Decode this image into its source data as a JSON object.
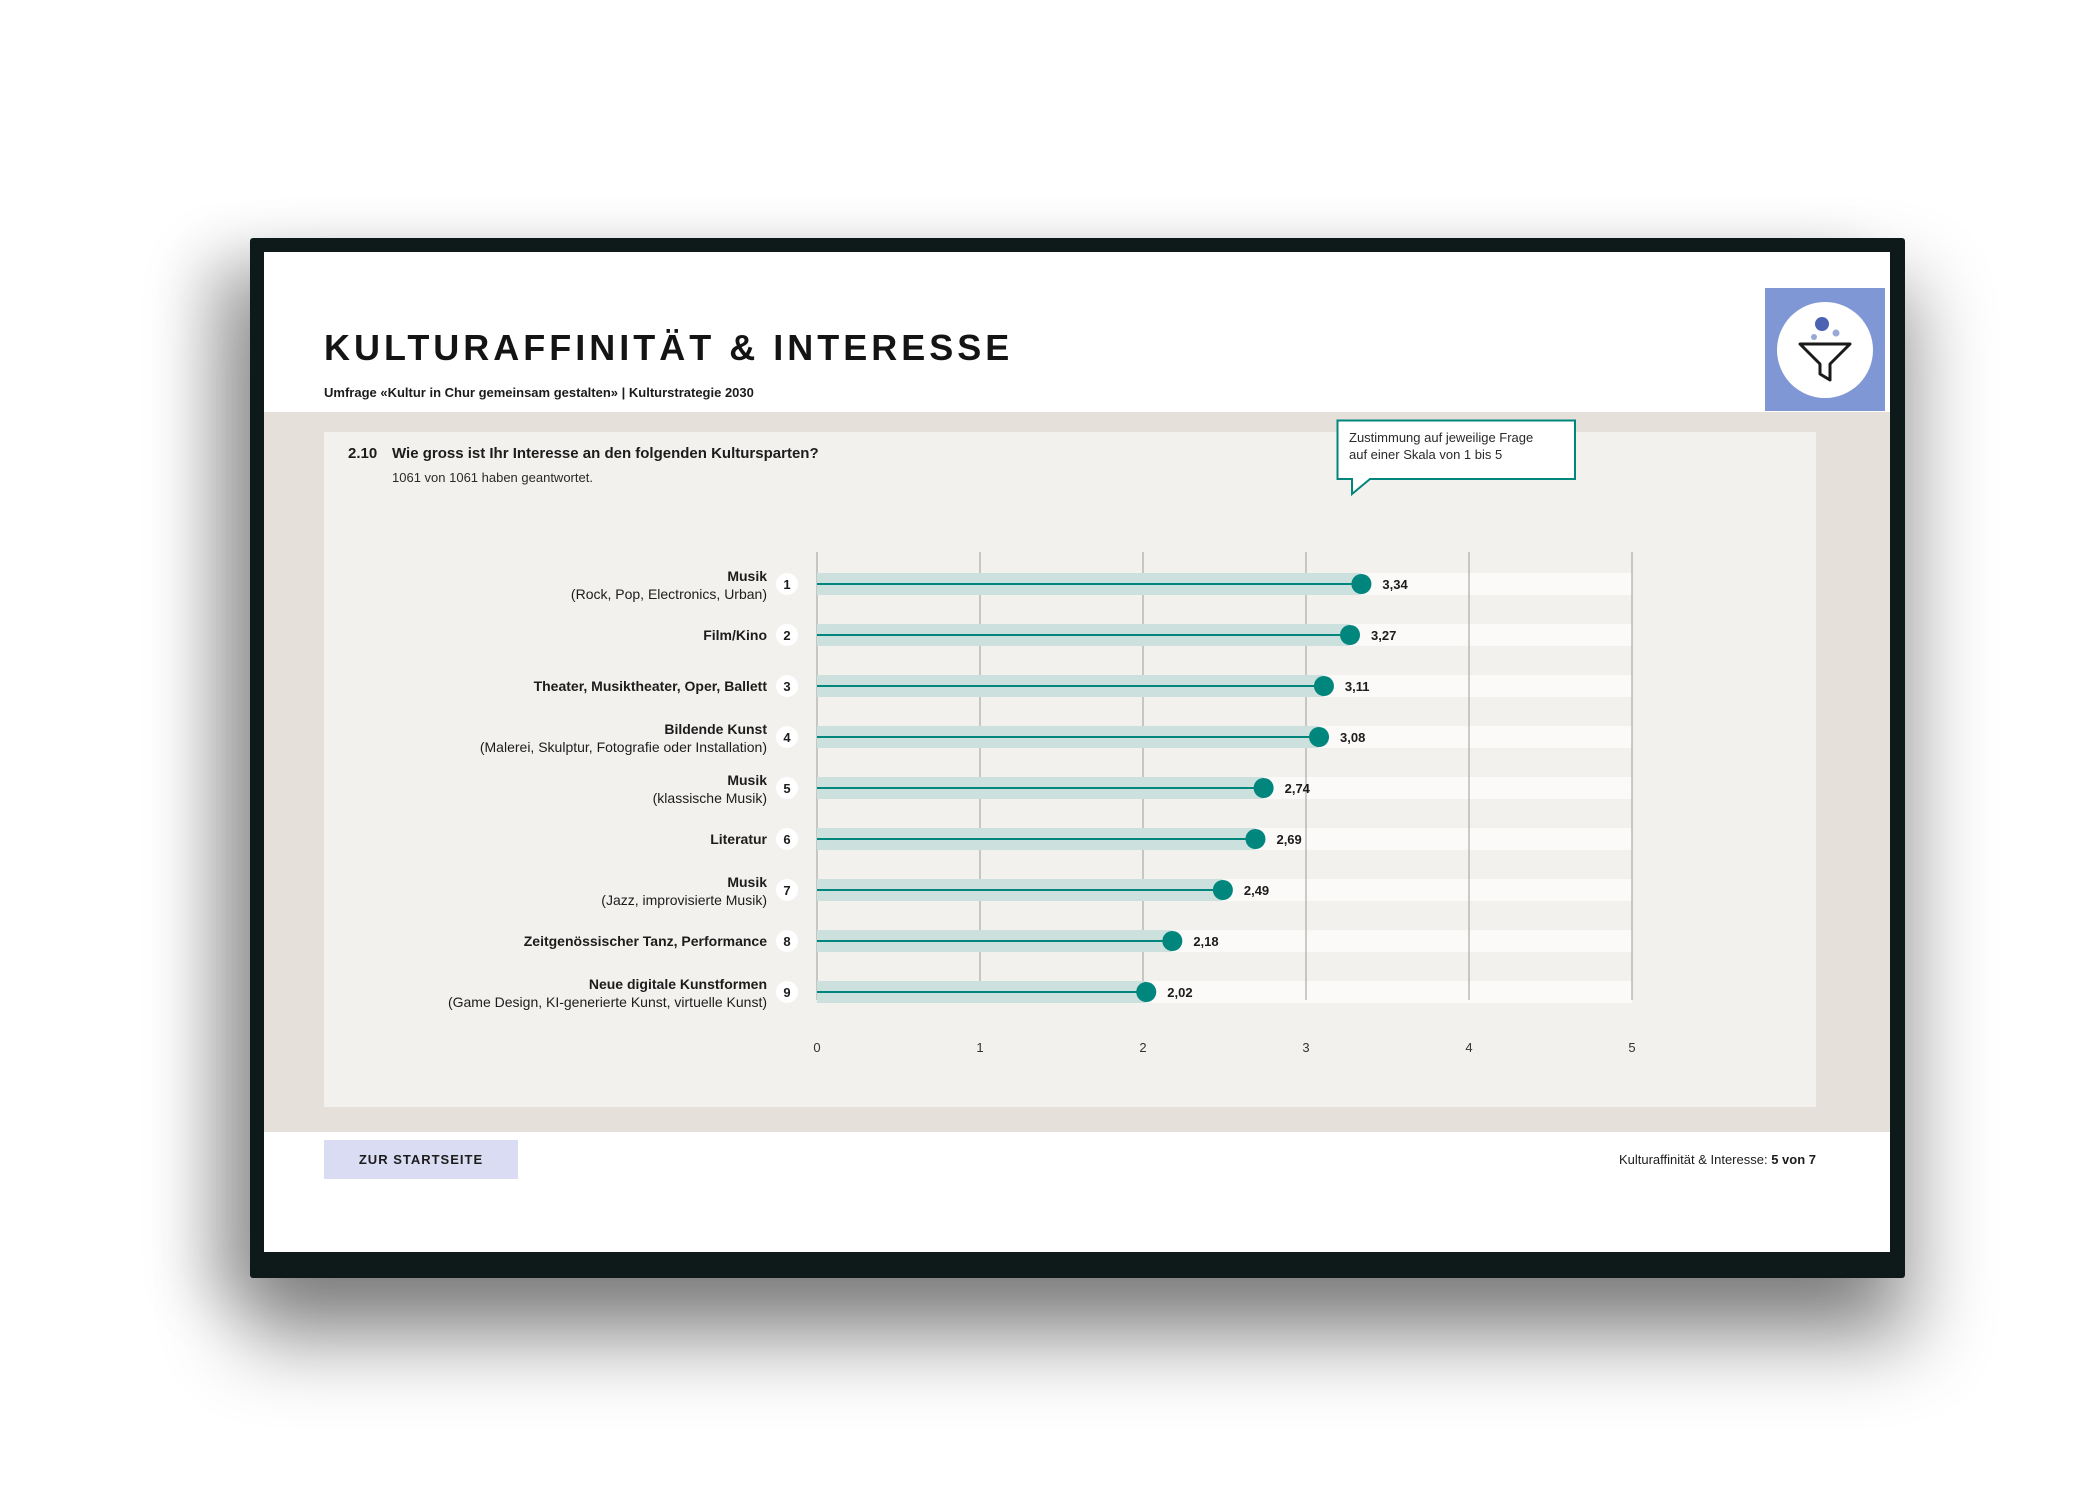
{
  "header": {
    "title": "KULTURAFFINITÄT & INTERESSE",
    "subtitle": "Umfrage «Kultur in Chur gemeinsam gestalten» | Kulturstrategie 2030"
  },
  "question": {
    "number": "2.10",
    "text": "Wie gross ist Ihr Interesse an den folgenden Kultursparten?",
    "responses": "1061 von 1061 haben geantwortet."
  },
  "callout": {
    "line1": "Zustimmung auf jeweilige Frage",
    "line2": "auf einer Skala von 1 bis 5"
  },
  "filter": {
    "icon": "filter-icon",
    "color": "#7f97d4"
  },
  "chart_data": {
    "type": "bar",
    "orientation": "horizontal",
    "style": "lollipop",
    "xlim": [
      0,
      5
    ],
    "x_ticks": [
      "0",
      "1",
      "2",
      "3",
      "4",
      "5"
    ],
    "grid": true,
    "accent_color": "#00867d",
    "bar_color": "#cce0de",
    "categories": [
      {
        "rank": "1",
        "label": "Musik",
        "sublabel": "(Rock, Pop, Electronics, Urban)",
        "value": 3.34,
        "value_label": "3,34"
      },
      {
        "rank": "2",
        "label": "Film/Kino",
        "sublabel": "",
        "value": 3.27,
        "value_label": "3,27"
      },
      {
        "rank": "3",
        "label": "Theater, Musiktheater, Oper, Ballett",
        "sublabel": "",
        "value": 3.11,
        "value_label": "3,11"
      },
      {
        "rank": "4",
        "label": "Bildende Kunst",
        "sublabel": "(Malerei, Skulptur, Fotografie oder Installation)",
        "value": 3.08,
        "value_label": "3,08"
      },
      {
        "rank": "5",
        "label": "Musik",
        "sublabel": "(klassische Musik)",
        "value": 2.74,
        "value_label": "2,74"
      },
      {
        "rank": "6",
        "label": "Literatur",
        "sublabel": "",
        "value": 2.69,
        "value_label": "2,69"
      },
      {
        "rank": "7",
        "label": "Musik",
        "sublabel": "(Jazz, improvisierte Musik)",
        "value": 2.49,
        "value_label": "2,49"
      },
      {
        "rank": "8",
        "label": "Zeitgenössischer Tanz, Performance",
        "sublabel": "",
        "value": 2.18,
        "value_label": "2,18"
      },
      {
        "rank": "9",
        "label": "Neue digitale Kunstformen",
        "sublabel": "(Game Design, KI-generierte Kunst, virtuelle Kunst)",
        "value": 2.02,
        "value_label": "2,02"
      }
    ]
  },
  "footer": {
    "home_label": "ZUR STARTSEITE",
    "section_label": "Kulturaffinität & Interesse:",
    "page_indicator": "5 von 7"
  }
}
